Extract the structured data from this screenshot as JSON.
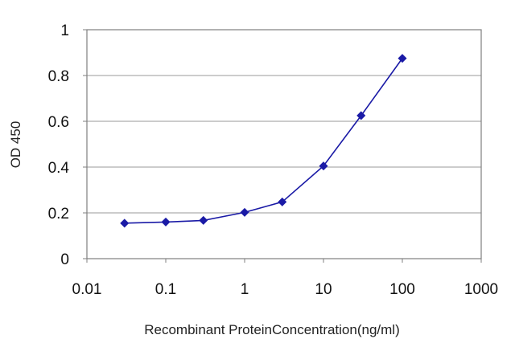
{
  "chart_data": {
    "type": "line",
    "title": "",
    "xlabel": "Recombinant ProteinConcentration(ng/ml)",
    "ylabel": "OD 450",
    "x_scale": "log",
    "xlim": [
      0.01,
      1000
    ],
    "ylim": [
      0,
      1
    ],
    "x_ticks": [
      0.01,
      0.1,
      1,
      10,
      100,
      1000
    ],
    "x_tick_labels": [
      "0.01",
      "0.1",
      "1",
      "10",
      "100",
      "1000"
    ],
    "y_ticks": [
      0,
      0.2,
      0.4,
      0.6,
      0.8,
      1
    ],
    "y_tick_labels": [
      "0",
      "0.2",
      "0.4",
      "0.6",
      "0.8",
      "1"
    ],
    "grid": "horizontal",
    "legend": "none",
    "series": [
      {
        "x": [
          0.03,
          0.1,
          0.3,
          1,
          3,
          10,
          30,
          100
        ],
        "values": [
          0.155,
          0.16,
          0.167,
          0.202,
          0.248,
          0.405,
          0.625,
          0.875
        ],
        "color": "#1a1aa6"
      }
    ]
  }
}
